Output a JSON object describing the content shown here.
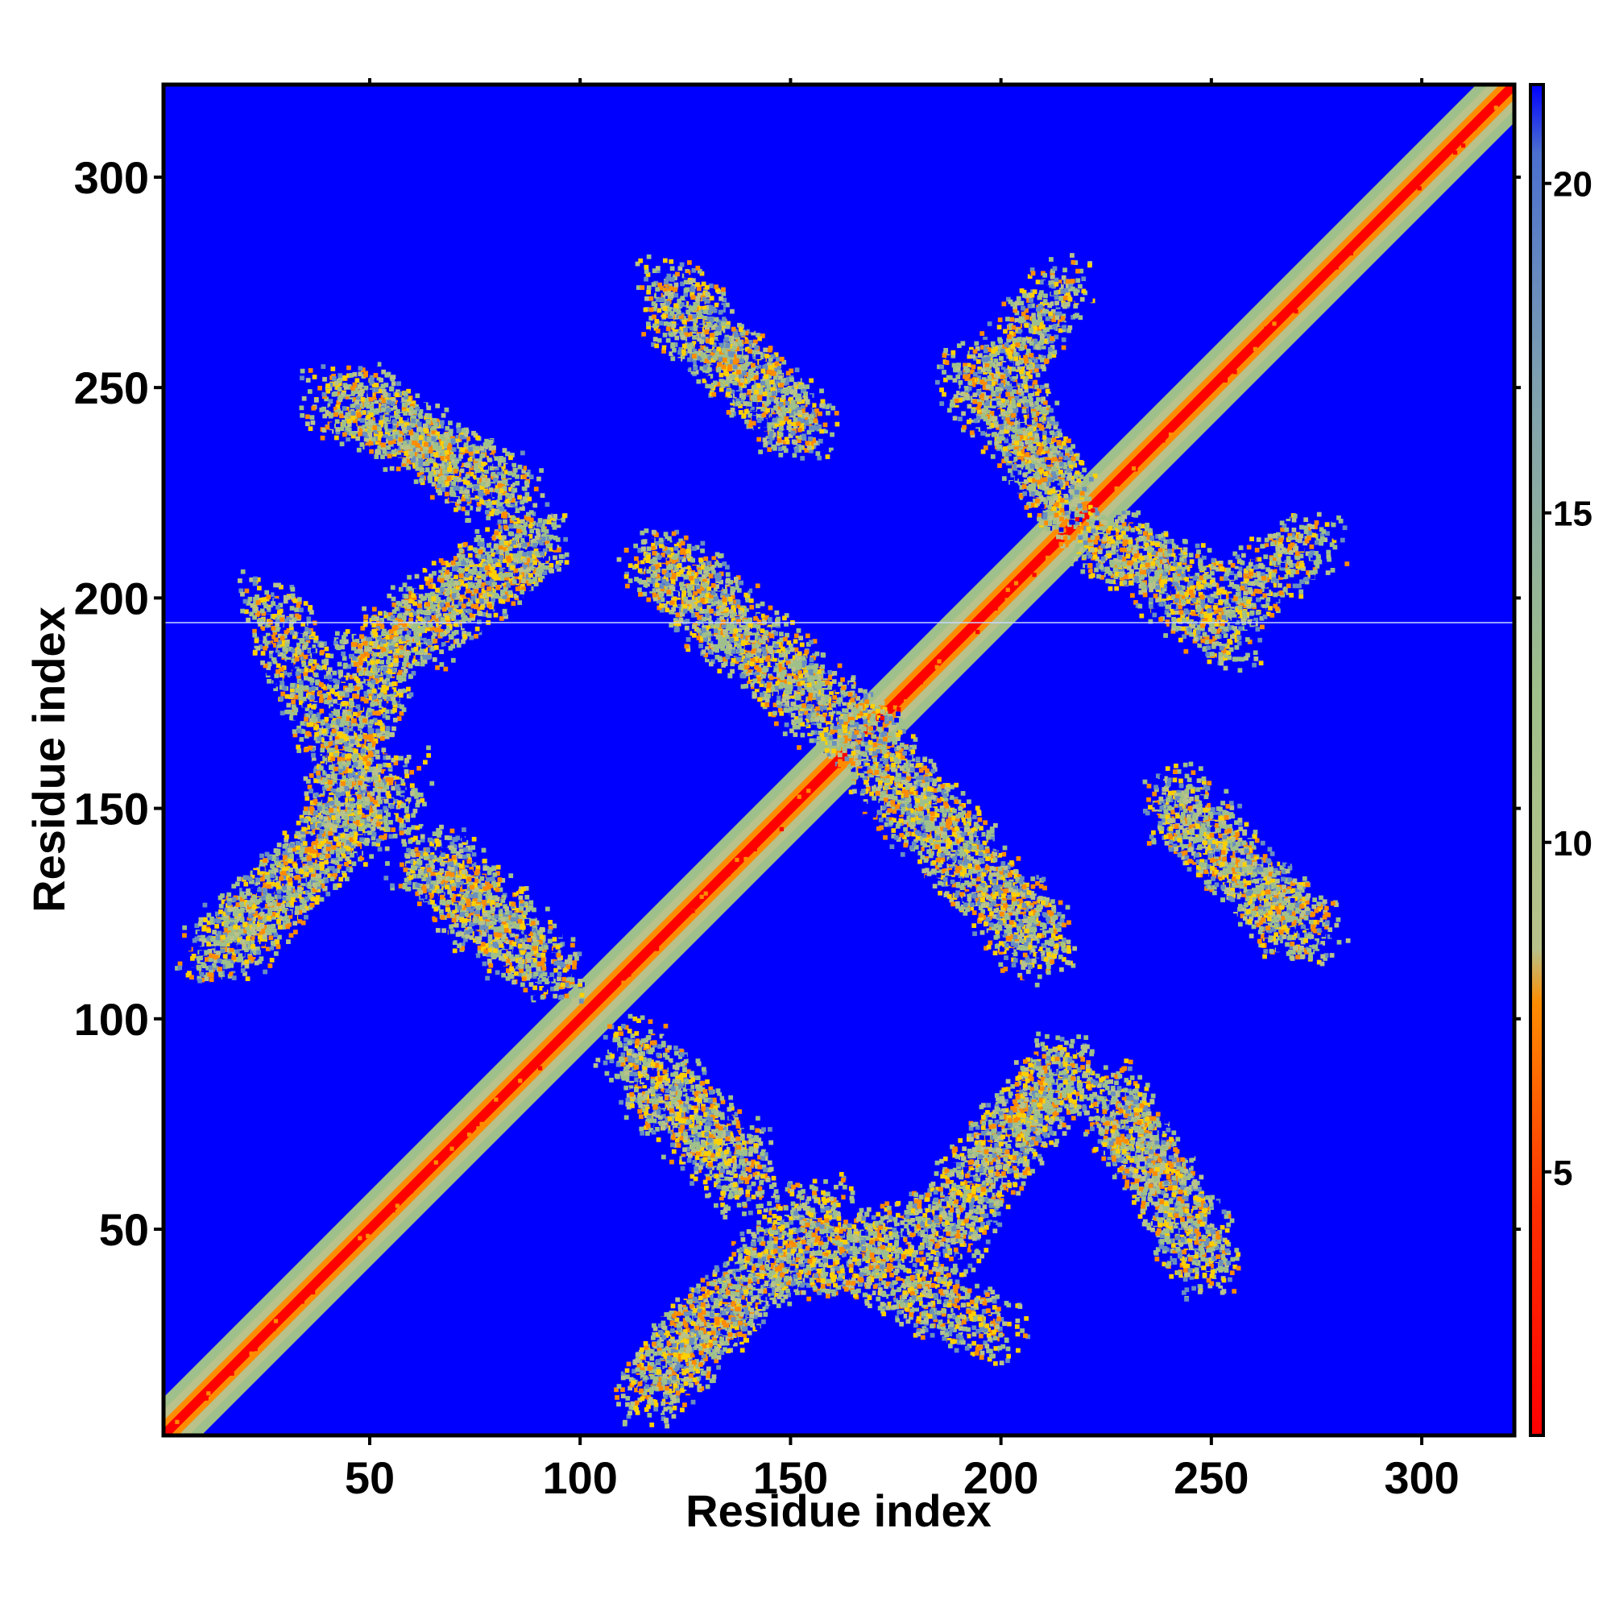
{
  "chart_data": {
    "type": "heatmap",
    "title": "",
    "xlabel": "Residue index",
    "ylabel": "Residue index",
    "xlim": [
      1,
      322
    ],
    "ylim": [
      1,
      322
    ],
    "x_ticks": [
      50,
      100,
      150,
      200,
      250,
      300
    ],
    "y_ticks": [
      50,
      100,
      150,
      200,
      250,
      300
    ],
    "colorbar": {
      "range": [
        1,
        21.5
      ],
      "ticks": [
        5,
        10,
        15,
        20
      ],
      "colors": {
        "low": "#ff0000",
        "mid_low": "#ff8c00",
        "mid": "#9fc08a",
        "high": "#6a8fbf",
        "background": "#0000ff"
      }
    },
    "features": {
      "diagonal": "distance increases from ~1 on the main diagonal outward",
      "off_diagonal_bands": [
        {
          "from": [
            10,
            115
          ],
          "to": [
            58,
            158
          ]
        },
        {
          "from": [
            40,
            150
          ],
          "to": [
            55,
            190
          ]
        },
        {
          "from": [
            45,
            185
          ],
          "to": [
            90,
            215
          ]
        },
        {
          "from": [
            40,
            248
          ],
          "to": [
            85,
            225
          ]
        },
        {
          "from": [
            120,
            270
          ],
          "to": [
            155,
            240
          ]
        },
        {
          "from": [
            120,
            210
          ],
          "to": [
            170,
            165
          ]
        },
        {
          "from": [
            170,
            160
          ],
          "to": [
            210,
            115
          ]
        },
        {
          "from": [
            200,
            255
          ],
          "to": [
            215,
            220
          ]
        },
        {
          "from": [
            225,
            215
          ],
          "to": [
            255,
            190
          ]
        },
        {
          "from": [
            255,
            200
          ],
          "to": [
            275,
            215
          ]
        },
        {
          "from": [
            240,
            150
          ],
          "to": [
            275,
            120
          ]
        },
        {
          "from": [
            65,
            140
          ],
          "to": [
            95,
            110
          ]
        },
        {
          "from": [
            115,
            85
          ],
          "to": [
            140,
            60
          ]
        },
        {
          "from": [
            115,
            15
          ],
          "to": [
            155,
            50
          ]
        },
        {
          "from": [
            160,
            45
          ],
          "to": [
            200,
            25
          ]
        },
        {
          "from": [
            190,
            60
          ],
          "to": [
            215,
            90
          ]
        },
        {
          "from": [
            225,
            80
          ],
          "to": [
            250,
            45
          ]
        }
      ]
    },
    "grid": false,
    "legend": "none"
  }
}
